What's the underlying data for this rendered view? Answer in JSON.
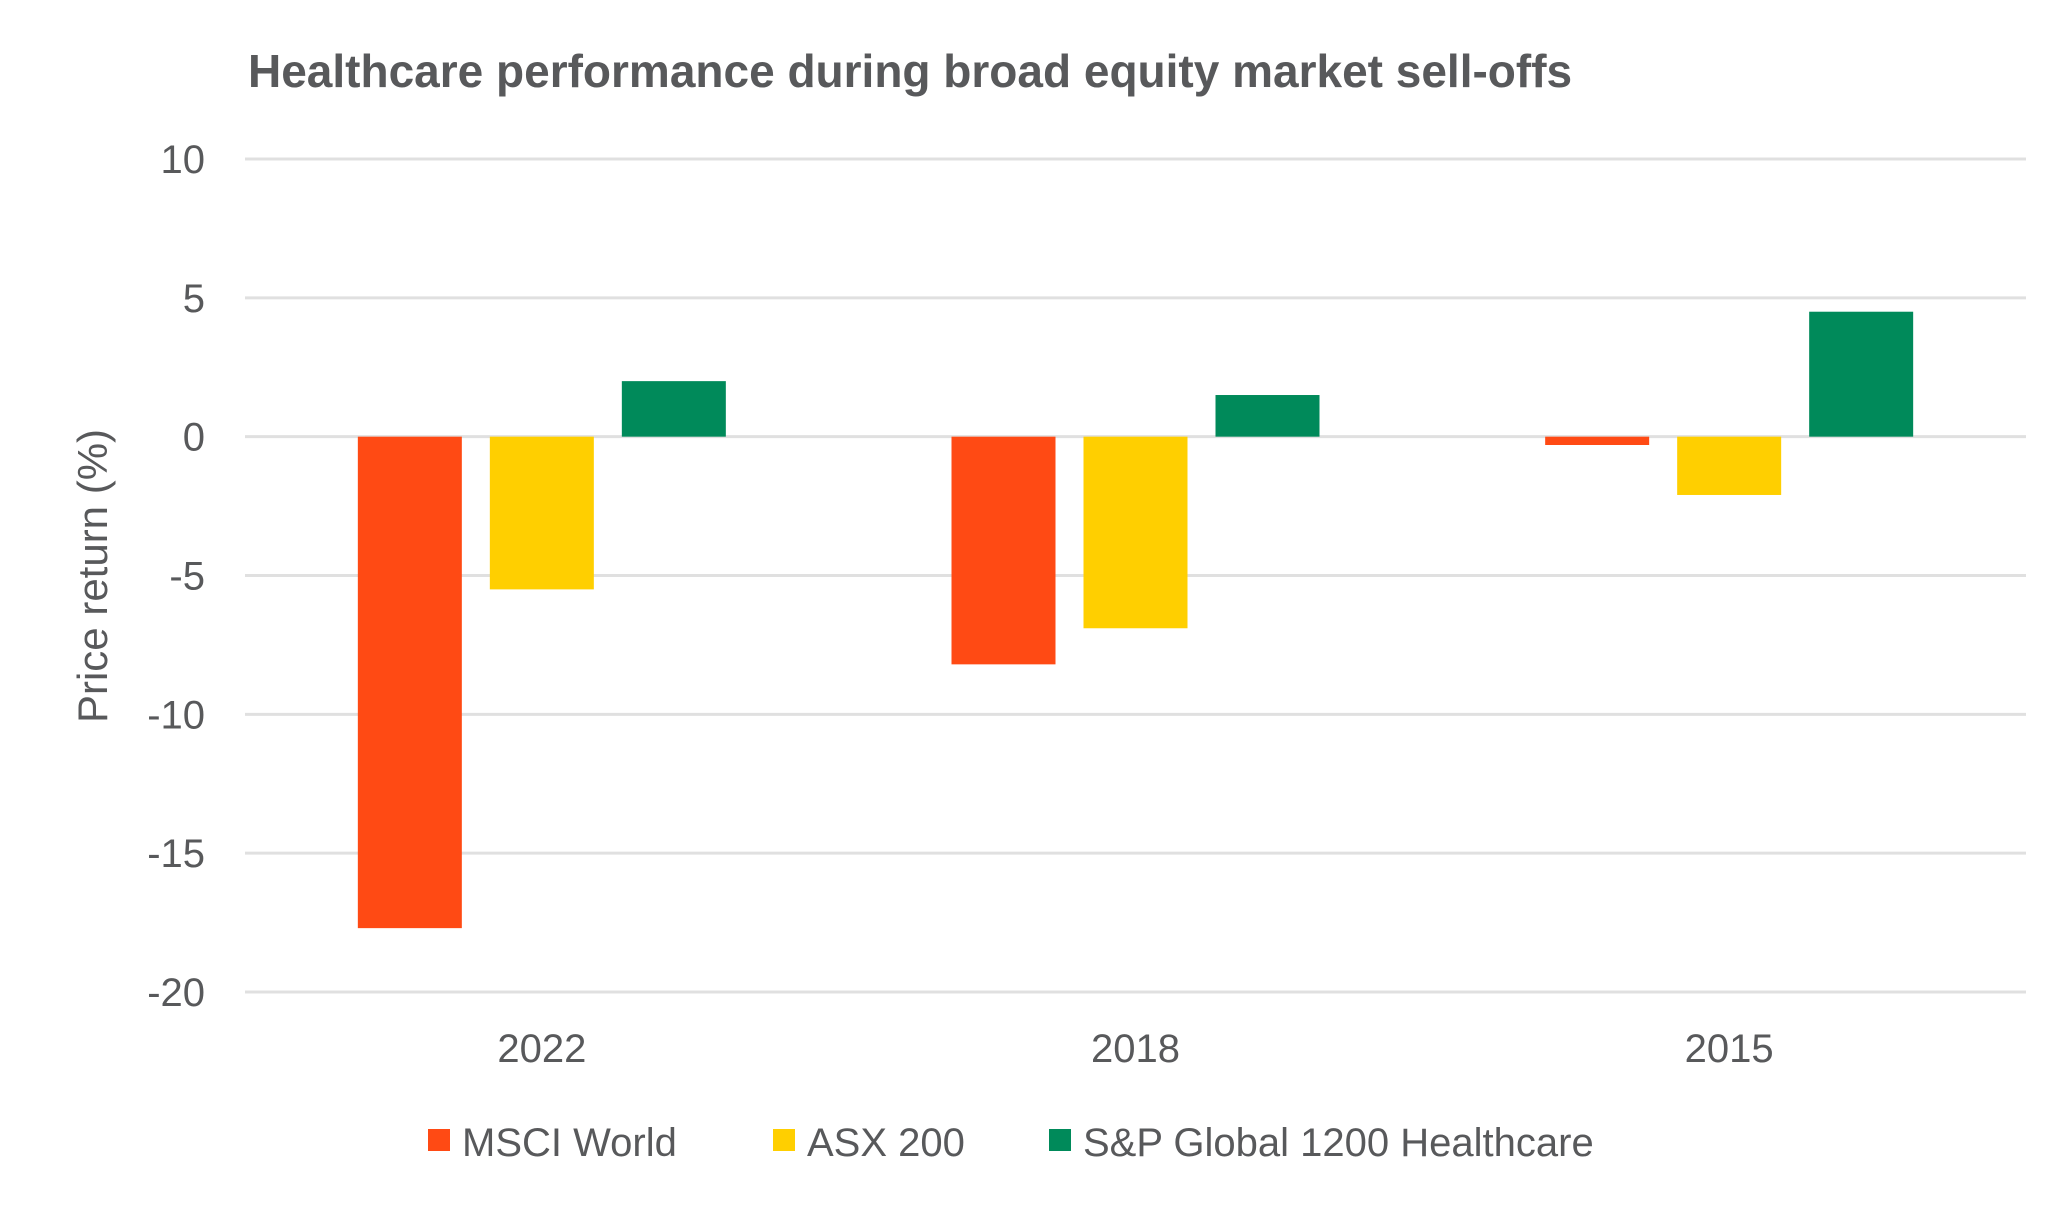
{
  "chart_data": {
    "type": "bar",
    "title": "Healthcare performance during broad equity market sell-offs",
    "xlabel": "",
    "ylabel": "Price return (%)",
    "ylim": [
      -20,
      10
    ],
    "yticks": [
      10,
      5,
      0,
      -5,
      -10,
      -15,
      -20
    ],
    "grid": true,
    "legend_position": "bottom",
    "categories": [
      "2022",
      "2018",
      "2015"
    ],
    "series": [
      {
        "name": "MSCI World",
        "color": "#ff4a14",
        "values": [
          -17.7,
          -8.2,
          -0.3
        ]
      },
      {
        "name": "ASX 200",
        "color": "#ffcf00",
        "values": [
          -5.5,
          -6.9,
          -2.1
        ]
      },
      {
        "name": "S&P Global 1200 Healthcare",
        "color": "#008a5a",
        "values": [
          2.0,
          1.5,
          4.5
        ]
      }
    ]
  }
}
